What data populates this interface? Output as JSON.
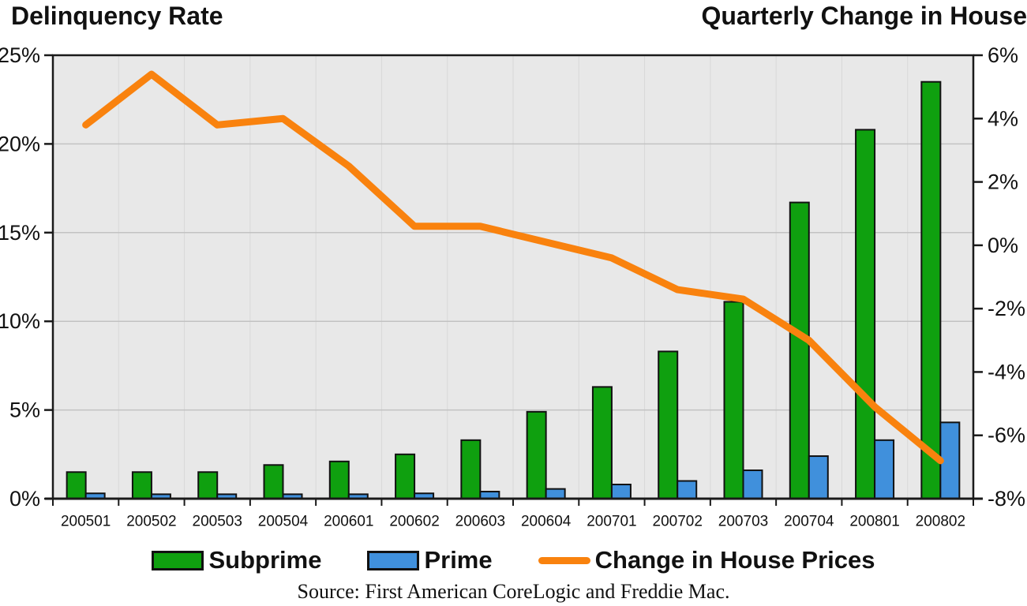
{
  "titles": {
    "left": "Delinquency Rate",
    "right": "Quarterly Change in House"
  },
  "source": "Source: First American CoreLogic and Freddie Mac.",
  "colors": {
    "subprime": "#0FA00F",
    "prime": "#4090DC",
    "house_price_line": "#F9820E",
    "plot_background": "#E8E8E8",
    "grid_horizontal": "#C2C2C2",
    "grid_vertical": "#D8D8D8",
    "frame": "#1A1A1A"
  },
  "legend": {
    "items": [
      {
        "label": "Subprime",
        "swatch": "bar",
        "color": "#0FA00F"
      },
      {
        "label": "Prime",
        "swatch": "bar",
        "color": "#4090DC"
      },
      {
        "label": "Change in House Prices",
        "swatch": "line",
        "color": "#F9820E"
      }
    ]
  },
  "chart_data": {
    "type": "combo-bar-line",
    "categories": [
      "200501",
      "200502",
      "200503",
      "200504",
      "200601",
      "200602",
      "200603",
      "200604",
      "200701",
      "200702",
      "200703",
      "200704",
      "200801",
      "200802"
    ],
    "series": [
      {
        "name": "Subprime",
        "type": "bar",
        "axis": "left",
        "color": "#0FA00F",
        "values": [
          1.5,
          1.5,
          1.5,
          1.9,
          2.1,
          2.5,
          3.3,
          4.9,
          6.3,
          8.3,
          11.1,
          16.7,
          20.8,
          23.5
        ]
      },
      {
        "name": "Prime",
        "type": "bar",
        "axis": "left",
        "color": "#4090DC",
        "values": [
          0.3,
          0.25,
          0.25,
          0.25,
          0.25,
          0.3,
          0.4,
          0.55,
          0.8,
          1.0,
          1.6,
          2.4,
          3.3,
          4.3
        ]
      },
      {
        "name": "Change in House Prices",
        "type": "line",
        "axis": "right",
        "color": "#F9820E",
        "values": [
          3.8,
          5.4,
          3.8,
          4.0,
          2.5,
          0.6,
          0.6,
          0.1,
          -0.4,
          -1.4,
          -1.7,
          -3.0,
          -5.1,
          -6.8
        ]
      }
    ],
    "left_axis": {
      "min": 0,
      "max": 25,
      "tick_step": 5,
      "tick_labels": [
        "0%",
        "5%",
        "10%",
        "15%",
        "20%",
        "25%"
      ]
    },
    "right_axis": {
      "min": -8,
      "max": 6,
      "tick_step": 2,
      "tick_labels": [
        "-8%",
        "-6%",
        "-4%",
        "-2%",
        "0%",
        "2%",
        "4%",
        "6%"
      ]
    },
    "grid": true,
    "legend_position": "bottom"
  }
}
